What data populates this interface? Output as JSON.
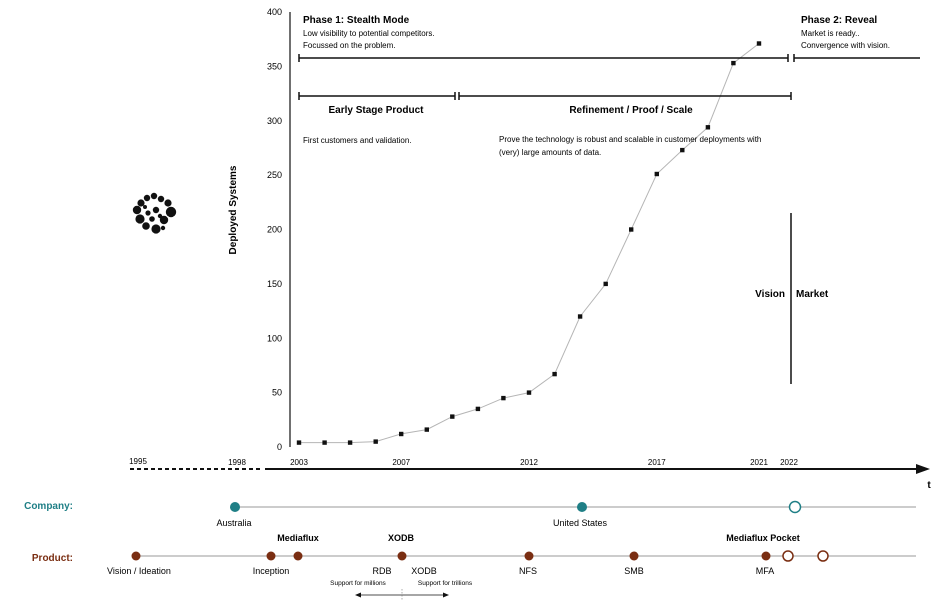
{
  "colors": {
    "company": "#1f7f86",
    "product": "#7a2e12",
    "ink": "#111111",
    "grid_line": "#bbbbbb",
    "timeline_line": "#999999"
  },
  "chart_data": {
    "type": "line",
    "ylabel": "Deployed Systems",
    "ylim": [
      0,
      400
    ],
    "yticks": [
      0,
      50,
      100,
      150,
      200,
      250,
      300,
      350,
      400
    ],
    "x": [
      2003,
      2004,
      2005,
      2006,
      2007,
      2008,
      2009,
      2010,
      2011,
      2012,
      2013,
      2014,
      2015,
      2016,
      2017,
      2018,
      2019,
      2020,
      2021
    ],
    "values": [
      4,
      4,
      4,
      5,
      12,
      16,
      28,
      35,
      45,
      50,
      67,
      120,
      150,
      200,
      251,
      273,
      294,
      353,
      371
    ],
    "grid": false,
    "xticks": [
      "2003",
      "2007",
      "2012",
      "2017",
      "2021"
    ]
  },
  "annotations": {
    "phase1": {
      "title": "Phase 1: Stealth Mode",
      "line1": "Low visibility to potential competitors.",
      "line2": "Focussed on the problem."
    },
    "phase2": {
      "title": "Phase 2: Reveal",
      "line1": "Market is ready..",
      "line2": "Convergence with vision."
    },
    "early_stage": {
      "title": "Early Stage Product",
      "text": "First customers and validation."
    },
    "refinement": {
      "title": "Refinement / Proof / Scale",
      "line1": "Prove the technology is robust and scalable in customer deployments with",
      "line2": "(very) large amounts of data."
    },
    "vision": "Vision",
    "market": "Market"
  },
  "timeline": {
    "years": [
      "1995",
      "1998",
      "2022"
    ],
    "axis_label": "t"
  },
  "company": {
    "label": "Company:",
    "milestones": [
      "Australia",
      "United States"
    ]
  },
  "product": {
    "label": "Product:",
    "milestones": [
      "Vision / Ideation",
      "Inception",
      "RDB",
      "XODB",
      "NFS",
      "SMB",
      "MFA"
    ],
    "headlines": [
      "Mediaflux",
      "XODB",
      "Mediaflux Pocket"
    ],
    "notes": [
      "Support for millions",
      "Support for trillions"
    ]
  },
  "logo": "logo-mark"
}
